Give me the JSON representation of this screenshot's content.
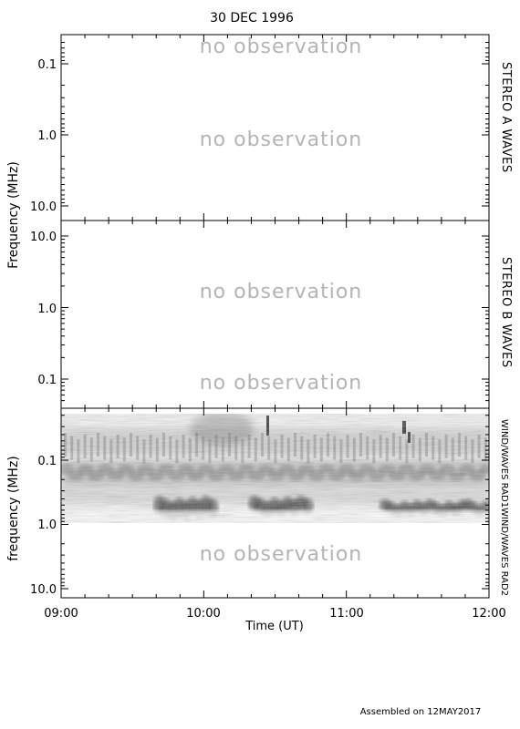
{
  "title": "30 DEC 1996",
  "footer": "Assembled on 12MAY2017",
  "no_observation_text": "no observation",
  "chart_data": [
    {
      "type": "heatmap",
      "panel": "STEREO A WAVES",
      "ylabel": "Frequency (MHz)",
      "yscale": "log",
      "ylim": [
        0.05,
        15
      ],
      "yticks": [
        "0.1",
        "1.0",
        "10.0"
      ],
      "data": "none",
      "annotations": [
        "no observation",
        "no observation"
      ]
    },
    {
      "type": "heatmap",
      "panel": "STEREO B WAVES",
      "ylabel": "Frequency (MHz)",
      "yscale": "log",
      "ylim": [
        15,
        0.05
      ],
      "yticks": [
        "10.0",
        "1.0",
        "0.1"
      ],
      "data": "none",
      "annotations": [
        "no observation",
        "no observation"
      ]
    },
    {
      "type": "heatmap",
      "panel": "WIND/WAVES RAD1 / WIND/WAVES RAD2",
      "ylabel": "frequency (MHz)",
      "xlabel": "Time (UT)",
      "yscale": "log",
      "ylim": [
        0.02,
        15
      ],
      "yticks": [
        "0.1",
        "1.0",
        "10.0"
      ],
      "xticks": [
        "09:00",
        "10:00",
        "11:00",
        "12:00"
      ],
      "xlim": [
        "09:00",
        "12:00"
      ],
      "right_labels": [
        "WIND/WAVES RAD1",
        "WIND/WAVES RAD2"
      ],
      "rad1_range_mhz": [
        0.02,
        1.0
      ],
      "rad2_annotation": "no observation",
      "dark_emission_events": [
        {
          "start": "09:40",
          "end": "10:05",
          "freq_mhz": [
            0.4,
            0.8
          ]
        },
        {
          "start": "10:20",
          "end": "10:45",
          "freq_mhz": [
            0.4,
            0.7
          ]
        },
        {
          "start": "11:15",
          "end": "11:50",
          "freq_mhz": [
            0.45,
            0.7
          ]
        },
        {
          "start": "11:50",
          "end": "12:00",
          "freq_mhz": [
            0.45,
            0.7
          ]
        }
      ]
    }
  ]
}
